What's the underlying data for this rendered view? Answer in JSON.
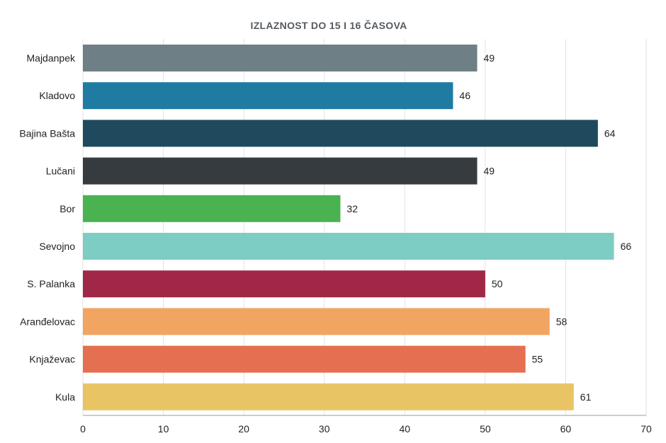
{
  "chart_data": {
    "type": "bar",
    "orientation": "horizontal",
    "title": "IZLAZNOST DO 15 I 16 ČASOVA",
    "xlabel": "",
    "ylabel": "",
    "xlim": [
      0,
      70
    ],
    "xticks": [
      0,
      10,
      20,
      30,
      40,
      50,
      60,
      70
    ],
    "grid": true,
    "categories": [
      "Majdanpek",
      "Kladovo",
      "Bajina Bašta",
      "Lučani",
      "Bor",
      "Sevojno",
      "S. Palanka",
      "Aranđelovac",
      "Knjaževac",
      "Kula"
    ],
    "values": [
      49,
      46,
      64,
      49,
      32,
      66,
      50,
      58,
      55,
      61
    ],
    "colors": [
      "#6e7f86",
      "#207ba3",
      "#1f4a5e",
      "#363b40",
      "#4bb251",
      "#7ecdc4",
      "#a02846",
      "#f2a461",
      "#e56f51",
      "#e8c465"
    ]
  }
}
